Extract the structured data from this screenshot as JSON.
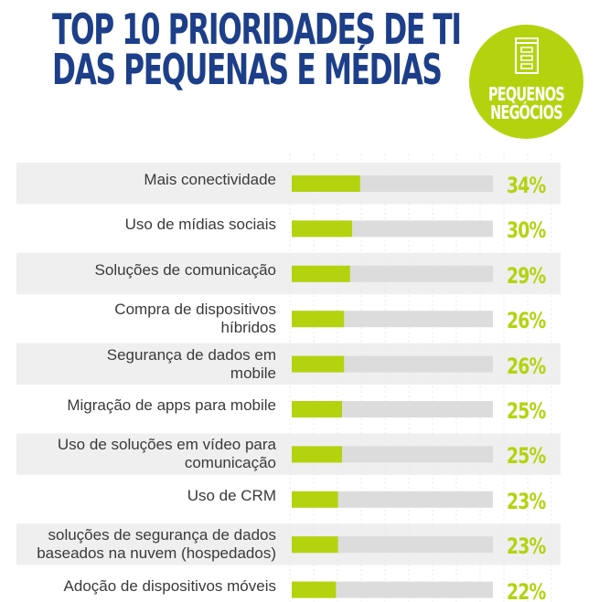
{
  "title": {
    "line1": "TOP 10 PRIORIDADES DE TI",
    "line2": "DAS PEQUENAS E MÉDIAS"
  },
  "badge": {
    "line1": "PEQUENOS",
    "line2": "NEGÓCIOS",
    "icon": "building-icon"
  },
  "colors": {
    "title": "#1d3f8a",
    "accent": "#b5d20f",
    "track": "#dcdcdc",
    "stripe": "#efefef"
  },
  "chart_data": {
    "type": "bar",
    "orientation": "horizontal",
    "categories": [
      "Mais conectividade",
      "Uso de mídias sociais",
      "Soluções de comunicação",
      "Compra de dispositivos\nhíbridos",
      "Segurança de dados em\nmobile",
      "Migração de apps para mobile",
      "Uso de soluções em vídeo para\ncomunicação",
      "Uso de CRM",
      "soluções de segurança de dados\nbaseados na nuvem (hospedados)",
      "Adoção de dispositivos móveis"
    ],
    "values": [
      34,
      30,
      29,
      26,
      26,
      25,
      25,
      23,
      23,
      22
    ],
    "value_labels": [
      "34%",
      "30%",
      "29%",
      "26%",
      "26%",
      "25%",
      "25%",
      "23%",
      "23%",
      "22%"
    ],
    "xlim": [
      0,
      100
    ],
    "grid": true
  }
}
